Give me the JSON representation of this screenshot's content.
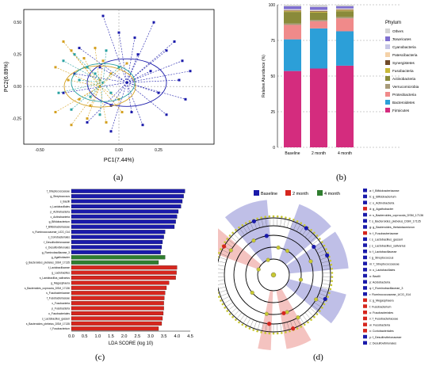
{
  "labels": {
    "a": "(a)",
    "b": "(b)",
    "c": "(c)",
    "d": "(d)"
  },
  "colors": {
    "baseline": "#1a1aaa",
    "m2": "#d6261e",
    "m4": "#2f7d2f",
    "cladogram": "#c8c832"
  },
  "chart_data": [
    {
      "type": "scatter",
      "xlabel": "PC1(7.44%)",
      "ylabel": "PC2(6.89%)",
      "xticks": [
        "-0.50",
        "0.00",
        "0.25"
      ],
      "yticks": [
        "0.50",
        "0.25",
        "0.00",
        "-0.25"
      ],
      "groups": [
        {
          "color": "#1a1aaa",
          "centroid": [
            0.05,
            0.03
          ],
          "points": [
            [
              -0.1,
              0.55
            ],
            [
              0.22,
              0.5
            ],
            [
              0.35,
              0.35
            ],
            [
              0.4,
              0.2
            ],
            [
              0.38,
              0.05
            ],
            [
              0.42,
              -0.1
            ],
            [
              0.3,
              -0.22
            ],
            [
              0.15,
              -0.3
            ],
            [
              -0.05,
              -0.35
            ],
            [
              -0.2,
              -0.28
            ],
            [
              -0.28,
              0.1
            ],
            [
              -0.25,
              0.3
            ],
            [
              0.0,
              0.42
            ],
            [
              0.12,
              0.25
            ],
            [
              0.2,
              0.12
            ],
            [
              0.25,
              -0.05
            ],
            [
              -0.12,
              0.15
            ],
            [
              -0.05,
              -0.15
            ],
            [
              0.08,
              -0.2
            ],
            [
              0.3,
              0.28
            ],
            [
              -0.35,
              -0.05
            ],
            [
              0.45,
              0.12
            ],
            [
              0.1,
              0.38
            ]
          ]
        },
        {
          "color": "#d4a020",
          "centroid": [
            -0.12,
            0.0
          ],
          "points": [
            [
              -0.35,
              0.35
            ],
            [
              -0.3,
              0.28
            ],
            [
              -0.15,
              0.3
            ],
            [
              -0.05,
              0.1
            ],
            [
              -0.25,
              -0.1
            ],
            [
              -0.4,
              -0.2
            ],
            [
              -0.2,
              -0.25
            ],
            [
              0.0,
              -0.1
            ],
            [
              -0.1,
              0.2
            ],
            [
              -0.32,
              0.05
            ],
            [
              -0.18,
              -0.15
            ],
            [
              0.05,
              0.18
            ],
            [
              -0.4,
              0.15
            ],
            [
              -0.22,
              0.22
            ],
            [
              -0.08,
              -0.28
            ],
            [
              -0.3,
              -0.3
            ],
            [
              0.02,
              -0.2
            ],
            [
              -0.12,
              0.05
            ]
          ]
        },
        {
          "color": "#2aa2a2",
          "centroid": [
            -0.1,
            0.03
          ],
          "points": [
            [
              -0.28,
              0.25
            ],
            [
              -0.15,
              0.1
            ],
            [
              -0.38,
              -0.05
            ],
            [
              -0.2,
              0.15
            ],
            [
              -0.05,
              -0.05
            ],
            [
              -0.3,
              -0.18
            ],
            [
              -0.12,
              -0.22
            ],
            [
              -0.25,
              0.05
            ],
            [
              0.0,
              0.15
            ],
            [
              -0.35,
              0.2
            ],
            [
              -0.18,
              -0.08
            ],
            [
              -0.08,
              0.28
            ]
          ]
        }
      ]
    },
    {
      "type": "bar",
      "stacked": true,
      "categories": [
        "Baseline",
        "2 month",
        "4 month"
      ],
      "ylabel": "Relative Abundance (%)",
      "yticks": [
        "0",
        "25",
        "50",
        "75",
        "100"
      ],
      "ylim": [
        0,
        100
      ],
      "legend_title": "Phylum",
      "series": [
        {
          "name": "Firmicutes",
          "color": "#d42c7e",
          "values": [
            53,
            55,
            57
          ]
        },
        {
          "name": "Bacteroidetes",
          "color": "#2c9fd8",
          "values": [
            22,
            28,
            24
          ]
        },
        {
          "name": "Proteobacteria",
          "color": "#f08a8a",
          "values": [
            10,
            5,
            9
          ]
        },
        {
          "name": "Verrucomicrobia",
          "color": "#a89b7a",
          "values": [
            1,
            1,
            1
          ]
        },
        {
          "name": "Actinobacteria",
          "color": "#8a8a3a",
          "values": [
            8,
            5,
            4
          ]
        },
        {
          "name": "Fusobacteria",
          "color": "#c9b93a",
          "values": [
            0.5,
            0.5,
            0.5
          ]
        },
        {
          "name": "Synergistetes",
          "color": "#6f4a2a",
          "values": [
            0.5,
            0.5,
            0.5
          ]
        },
        {
          "name": "Patescibacteria",
          "color": "#f4d2a8",
          "values": [
            0.5,
            0.5,
            0.5
          ]
        },
        {
          "name": "Cyanobacteria",
          "color": "#c7c7e6",
          "values": [
            0.5,
            0.5,
            0.5
          ]
        },
        {
          "name": "Tenericutes",
          "color": "#7f6fd0",
          "values": [
            2,
            2,
            1.5
          ]
        },
        {
          "name": "Others",
          "color": "#d4d4d4",
          "values": [
            1,
            1.5,
            1
          ]
        }
      ]
    },
    {
      "type": "bar",
      "orientation": "horizontal",
      "xlabel": "LDA SCORE (log 10)",
      "xticks": [
        "0.0",
        "0.5",
        "1.0",
        "1.5",
        "2.0",
        "2.5",
        "3.0",
        "3.5",
        "4.0",
        "4.5"
      ],
      "xlim": [
        0,
        4.5
      ],
      "categories": [
        "f_Streptococcaceae",
        "g_Streptococcus",
        "s_Bacilli",
        "o_Lactobacillales",
        "p_Actinobacteria",
        "c_Actinobacteria",
        "g_Bifidobacterium",
        "f_Bifidobacteriaceae",
        "s_Ruminococcaceae_UCG_014",
        "s_Coriobacteriales",
        "f_Desulfovibrionaceae",
        "o_Desulfovibrionales",
        "g_Ruminobacillaceae_3",
        "g_Agathobacter",
        "g_Bacteroides_plebeius_DSM_17135",
        "f_Lactobacillaceae",
        "g_Lactobacillus",
        "s_Lactobacillus_salivarius",
        "g_Megasphaera",
        "s_Bacteroides_coprocola_DSM_17136",
        "s_Fusobacteriaceae",
        "f_Fusobacteriaceae",
        "c_Fusobacteria",
        "p_Fusobacteria",
        "o_Fusobacteriales",
        "s_Lactobacillus_gasseri",
        "s_Bacteroides_plebeius_DSM_17135",
        "f_Fusobacterium"
      ],
      "values": [
        4.3,
        4.25,
        4.2,
        4.15,
        4.05,
        4.0,
        3.95,
        3.9,
        3.55,
        3.5,
        3.45,
        3.42,
        3.38,
        3.55,
        3.3,
        4.0,
        3.98,
        3.95,
        3.7,
        3.6,
        3.55,
        3.52,
        3.5,
        3.5,
        3.48,
        3.45,
        3.42,
        3.3
      ],
      "groups": [
        "Baseline",
        "Baseline",
        "Baseline",
        "Baseline",
        "Baseline",
        "Baseline",
        "Baseline",
        "Baseline",
        "Baseline",
        "Baseline",
        "Baseline",
        "Baseline",
        "Baseline",
        "4 month",
        "4 month",
        "2 month",
        "2 month",
        "2 month",
        "2 month",
        "2 month",
        "2 month",
        "2 month",
        "2 month",
        "2 month",
        "2 month",
        "2 month",
        "2 month",
        "2 month"
      ]
    },
    {
      "type": "cladogram",
      "legend": [
        "Baseline",
        "2 month",
        "4 month"
      ],
      "taxa": [
        "a: f_Bifidobacteriaceae",
        "b: g_Bifidobacterium",
        "c: o_Actinobacteria",
        "d: g_Agathobacter",
        "e: s_Bacteroides_coprocola_DSM_17136",
        "f: s_Bacteroides_plebeius_DSM_17135",
        "g: g_Bacteroides_thetaiotaomicron",
        "h: f_Fusobacteriaceae",
        "i: s_Lactobacillus_gasseri",
        "j: s_Lactobacillus_salivarius",
        "k: f_Lactobacillaceae",
        "l: g_Streptococcus",
        "m: f_Streptococcaceae",
        "n: o_Lactobacillales",
        "o: Bacilli",
        "p: Acidobacteria",
        "q: f_Ruminobacillaceae_3",
        "r: Ruminococcaceae_UCG_014",
        "s: g_Megasphaera",
        "t: Fusobacterium",
        "u: Fusobacteriales",
        "v: f_Fusobacteriaceae",
        "w: Fusobacteria",
        "x: Coriobacteriales",
        "y: f_Desulfovibrionaceae",
        "z: Desulfovibrionales"
      ]
    }
  ]
}
